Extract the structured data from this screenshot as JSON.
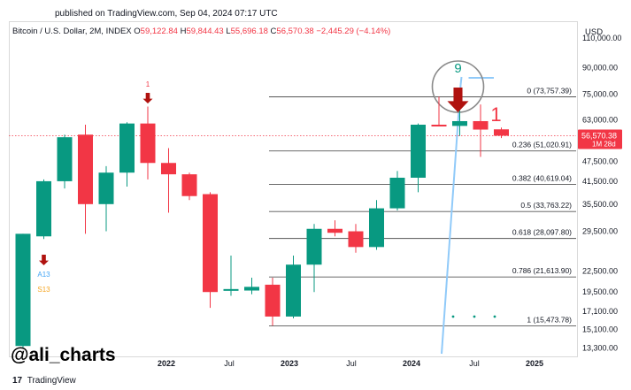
{
  "header": {
    "published": "published on TradingView.com, Sep 04, 2024 07:17 UTC"
  },
  "symbol": {
    "name": "Bitcoin / U.S. Dollar, 2M, INDEX",
    "open_label": "O",
    "open": "59,122.84",
    "high_label": "H",
    "high": "59,844.43",
    "low_label": "L",
    "low": "55,696.18",
    "close_label": "C",
    "close": "56,570.38",
    "change": "−2,445.29 (−4.14%)"
  },
  "currency": "USD",
  "watermark": "@ali_charts",
  "footer": {
    "logo": "17",
    "brand": "TradingView"
  },
  "colors": {
    "up": "#089981",
    "down": "#f23645",
    "trend": "#90caf9",
    "fib": "#131722"
  },
  "chart_data": {
    "type": "candlestick",
    "scale": "log",
    "ylim": [
      12500,
      122000
    ],
    "y_ticks": [
      {
        "value": 110000,
        "label": "110,000.00"
      },
      {
        "value": 90000,
        "label": "90,000.00"
      },
      {
        "value": 75000,
        "label": "75,000.00"
      },
      {
        "value": 63000,
        "label": "63,000.00"
      },
      {
        "value": 47500,
        "label": "47,500.00"
      },
      {
        "value": 41500,
        "label": "41,500.00"
      },
      {
        "value": 35500,
        "label": "35,500.00"
      },
      {
        "value": 29500,
        "label": "29,500.00"
      },
      {
        "value": 22500,
        "label": "22,500.00"
      },
      {
        "value": 19500,
        "label": "19,500.00"
      },
      {
        "value": 17100,
        "label": "17,100.00"
      },
      {
        "value": 15100,
        "label": "15,100.00"
      },
      {
        "value": 13300,
        "label": "13,300.00"
      }
    ],
    "x_ticks": [
      "2022",
      "Jul",
      "2023",
      "Jul",
      "2024",
      "Jul",
      "2025"
    ],
    "candles": [
      {
        "o": 13500,
        "h": 29000,
        "l": 13300,
        "c": 29000
      },
      {
        "o": 28500,
        "h": 42000,
        "l": 28000,
        "c": 41500
      },
      {
        "o": 41500,
        "h": 57000,
        "l": 39500,
        "c": 56000
      },
      {
        "o": 57000,
        "h": 61000,
        "l": 29000,
        "c": 35500
      },
      {
        "o": 35500,
        "h": 46000,
        "l": 29500,
        "c": 44000
      },
      {
        "o": 44000,
        "h": 62000,
        "l": 40000,
        "c": 61500
      },
      {
        "o": 61500,
        "h": 69000,
        "l": 42000,
        "c": 47000
      },
      {
        "o": 47000,
        "h": 52000,
        "l": 33500,
        "c": 43500
      },
      {
        "o": 43500,
        "h": 44000,
        "l": 36500,
        "c": 37500
      },
      {
        "o": 38000,
        "h": 38500,
        "l": 17500,
        "c": 19500
      },
      {
        "o": 19700,
        "h": 25000,
        "l": 19000,
        "c": 19900
      },
      {
        "o": 19700,
        "h": 21500,
        "l": 19200,
        "c": 20200
      },
      {
        "o": 20500,
        "h": 21500,
        "l": 15500,
        "c": 16500
      },
      {
        "o": 16500,
        "h": 25000,
        "l": 16300,
        "c": 23500
      },
      {
        "o": 23500,
        "h": 31000,
        "l": 19500,
        "c": 30000
      },
      {
        "o": 30000,
        "h": 31800,
        "l": 28500,
        "c": 29200
      },
      {
        "o": 29500,
        "h": 31000,
        "l": 25500,
        "c": 26500
      },
      {
        "o": 26500,
        "h": 36500,
        "l": 26000,
        "c": 34500
      },
      {
        "o": 34500,
        "h": 44500,
        "l": 34000,
        "c": 42500
      },
      {
        "o": 42500,
        "h": 61500,
        "l": 38500,
        "c": 61000
      },
      {
        "o": 61000,
        "h": 73800,
        "l": 60500,
        "c": 60800
      },
      {
        "o": 60500,
        "h": 72000,
        "l": 56500,
        "c": 62500
      },
      {
        "o": 62500,
        "h": 70000,
        "l": 49000,
        "c": 59000
      },
      {
        "o": 59100,
        "h": 59800,
        "l": 55700,
        "c": 56600
      }
    ],
    "price_tag": {
      "value": 56570.38,
      "label": "56,570.38",
      "sublabel": "1M 28d"
    },
    "fib_levels": [
      {
        "ratio": "0",
        "value": 73757.39,
        "label": "0 (73,757.39)"
      },
      {
        "ratio": "0.236",
        "value": 51020.91,
        "label": "0.236 (51,020.91)"
      },
      {
        "ratio": "0.382",
        "value": 40619.04,
        "label": "0.382 (40,619.04)"
      },
      {
        "ratio": "0.5",
        "value": 33763.22,
        "label": "0.5 (33,763.22)"
      },
      {
        "ratio": "0.618",
        "value": 28097.8,
        "label": "0.618 (28,097.80)"
      },
      {
        "ratio": "0.786",
        "value": 21613.9,
        "label": "0.786 (21,613.90)"
      },
      {
        "ratio": "1",
        "value": 15473.78,
        "label": "1 (15,473.78)"
      }
    ],
    "annotations": {
      "a13": "A13",
      "s13": "S13",
      "count_1_small": "1",
      "count_9": "9",
      "count_1_large": "1"
    }
  }
}
